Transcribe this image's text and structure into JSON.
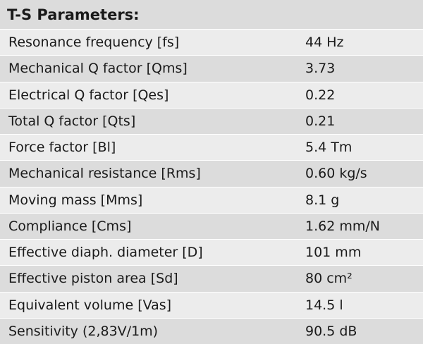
{
  "title": "T-S Parameters:",
  "rows": [
    {
      "label": "Resonance frequency [fs]",
      "value": "44 Hz"
    },
    {
      "label": "Mechanical Q factor [Qms]",
      "value": "3.73"
    },
    {
      "label": "Electrical Q factor [Qes]",
      "value": "0.22"
    },
    {
      "label": "Total Q factor [Qts]",
      "value": "0.21"
    },
    {
      "label": "Force factor [Bl]",
      "value": "5.4 Tm"
    },
    {
      "label": "Mechanical resistance [Rms]",
      "value": "0.60 kg/s"
    },
    {
      "label": "Moving mass [Mms]",
      "value": "8.1 g"
    },
    {
      "label": "Compliance [Cms]",
      "value": "1.62 mm/N"
    },
    {
      "label": "Effective diaph. diameter [D]",
      "value": "101 mm"
    },
    {
      "label": "Effective piston area [Sd]",
      "value": "80 cm²"
    },
    {
      "label": "Equivalent volume [Vas]",
      "value": "14.5 l"
    },
    {
      "label": "Sensitivity (2,83V/1m)",
      "value": "90.5 dB"
    }
  ]
}
